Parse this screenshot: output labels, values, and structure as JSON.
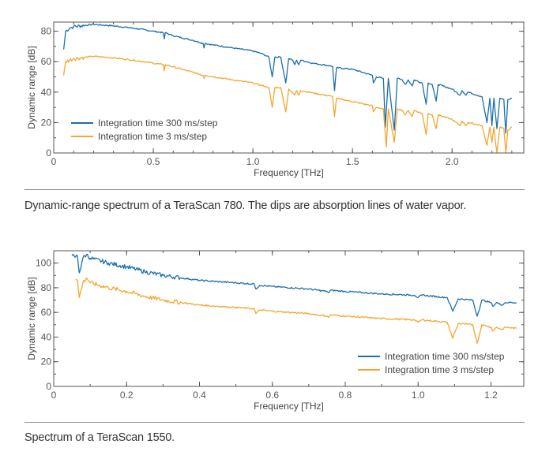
{
  "colors": {
    "series_300ms": "#1b6fae",
    "series_3ms": "#f4a630",
    "axis": "#555555"
  },
  "chart_data": [
    {
      "type": "line",
      "xlabel": "Frequency [THz]",
      "ylabel": "Dynamic range [dB]",
      "xlim": [
        0,
        2.36
      ],
      "ylim": [
        0,
        86
      ],
      "xticks": [
        0,
        0.5,
        1.0,
        1.5,
        2.0
      ],
      "xtick_labels": [
        "0",
        "0.5",
        "1.0",
        "1.5",
        "2.0"
      ],
      "yticks": [
        0,
        20,
        40,
        60,
        80
      ],
      "ytick_labels": [
        "0",
        "20",
        "40",
        "60",
        "80"
      ],
      "grid": false,
      "legend_position": "bottom-left",
      "caption": "Dynamic-range spectrum of a TeraScan 780. The dips are absorption lines of water vapor.",
      "series": [
        {
          "name": "Integration time 300 ms/step",
          "color": "#1b6fae",
          "points": [
            [
              0.05,
              68
            ],
            [
              0.06,
              80
            ],
            [
              0.08,
              82
            ],
            [
              0.1,
              83
            ],
            [
              0.2,
              84.5
            ],
            [
              0.3,
              83.5
            ],
            [
              0.4,
              82
            ],
            [
              0.5,
              80
            ],
            [
              0.55,
              79
            ],
            [
              0.555,
              75
            ],
            [
              0.56,
              79
            ],
            [
              0.6,
              77
            ],
            [
              0.7,
              74
            ],
            [
              0.75,
              72
            ],
            [
              0.755,
              69
            ],
            [
              0.76,
              72
            ],
            [
              0.8,
              71
            ],
            [
              0.9,
              69
            ],
            [
              1.0,
              67
            ],
            [
              1.05,
              65
            ],
            [
              1.08,
              63
            ],
            [
              1.097,
              50
            ],
            [
              1.11,
              63
            ],
            [
              1.14,
              63
            ],
            [
              1.165,
              46
            ],
            [
              1.18,
              62
            ],
            [
              1.2,
              61
            ],
            [
              1.21,
              58
            ],
            [
              1.22,
              61
            ],
            [
              1.23,
              58
            ],
            [
              1.24,
              61
            ],
            [
              1.3,
              59
            ],
            [
              1.4,
              57
            ],
            [
              1.41,
              41
            ],
            [
              1.42,
              56
            ],
            [
              1.5,
              55
            ],
            [
              1.55,
              53
            ],
            [
              1.6,
              51
            ],
            [
              1.605,
              46
            ],
            [
              1.62,
              50
            ],
            [
              1.655,
              49
            ],
            [
              1.665,
              17
            ],
            [
              1.68,
              49
            ],
            [
              1.71,
              15
            ],
            [
              1.725,
              49
            ],
            [
              1.75,
              48
            ],
            [
              1.765,
              45
            ],
            [
              1.78,
              48
            ],
            [
              1.8,
              44
            ],
            [
              1.81,
              48
            ],
            [
              1.85,
              46
            ],
            [
              1.87,
              32
            ],
            [
              1.88,
              46
            ],
            [
              1.9,
              45
            ],
            [
              1.92,
              34
            ],
            [
              1.93,
              45
            ],
            [
              2.0,
              42
            ],
            [
              2.04,
              38
            ],
            [
              2.05,
              41
            ],
            [
              2.07,
              38
            ],
            [
              2.08,
              40
            ],
            [
              2.15,
              37
            ],
            [
              2.175,
              20
            ],
            [
              2.19,
              36
            ],
            [
              2.2,
              18
            ],
            [
              2.21,
              36
            ],
            [
              2.225,
              16
            ],
            [
              2.24,
              36
            ],
            [
              2.26,
              35
            ],
            [
              2.27,
              13
            ],
            [
              2.28,
              35
            ],
            [
              2.3,
              36
            ]
          ]
        },
        {
          "name": "Integration time 3 ms/step",
          "color": "#f4a630",
          "points": [
            [
              0.05,
              51
            ],
            [
              0.06,
              60
            ],
            [
              0.1,
              62
            ],
            [
              0.2,
              63.5
            ],
            [
              0.3,
              62.5
            ],
            [
              0.4,
              61
            ],
            [
              0.5,
              59
            ],
            [
              0.55,
              58
            ],
            [
              0.555,
              54
            ],
            [
              0.56,
              58
            ],
            [
              0.7,
              53
            ],
            [
              0.75,
              51
            ],
            [
              0.755,
              49
            ],
            [
              0.76,
              51
            ],
            [
              0.9,
              48
            ],
            [
              1.0,
              46
            ],
            [
              1.08,
              43
            ],
            [
              1.097,
              30
            ],
            [
              1.11,
              43
            ],
            [
              1.14,
              43
            ],
            [
              1.165,
              27
            ],
            [
              1.18,
              42
            ],
            [
              1.21,
              38
            ],
            [
              1.22,
              41
            ],
            [
              1.23,
              38
            ],
            [
              1.24,
              41
            ],
            [
              1.4,
              37
            ],
            [
              1.41,
              24
            ],
            [
              1.42,
              36
            ],
            [
              1.6,
              31
            ],
            [
              1.605,
              27
            ],
            [
              1.62,
              30
            ],
            [
              1.655,
              29
            ],
            [
              1.665,
              12
            ],
            [
              1.67,
              4
            ],
            [
              1.68,
              29
            ],
            [
              1.71,
              7
            ],
            [
              1.725,
              29
            ],
            [
              1.75,
              28
            ],
            [
              1.765,
              25
            ],
            [
              1.78,
              28
            ],
            [
              1.8,
              24
            ],
            [
              1.81,
              28
            ],
            [
              1.85,
              26
            ],
            [
              1.87,
              12
            ],
            [
              1.88,
              26
            ],
            [
              1.9,
              25
            ],
            [
              1.92,
              16
            ],
            [
              1.93,
              25
            ],
            [
              2.0,
              22
            ],
            [
              2.04,
              18
            ],
            [
              2.05,
              21
            ],
            [
              2.07,
              18
            ],
            [
              2.08,
              20
            ],
            [
              2.15,
              18
            ],
            [
              2.175,
              5
            ],
            [
              2.19,
              17
            ],
            [
              2.2,
              7
            ],
            [
              2.21,
              17
            ],
            [
              2.225,
              0
            ],
            [
              2.24,
              17
            ],
            [
              2.26,
              16
            ],
            [
              2.27,
              0
            ],
            [
              2.28,
              15
            ],
            [
              2.3,
              17
            ]
          ]
        }
      ]
    },
    {
      "type": "line",
      "xlabel": "Frequency [THz]",
      "ylabel": "Dynamic range [dB]",
      "xlim": [
        0,
        1.29
      ],
      "ylim": [
        0,
        110
      ],
      "xticks": [
        0,
        0.2,
        0.4,
        0.6,
        0.8,
        1.0,
        1.2
      ],
      "xtick_labels": [
        "0",
        "0.2",
        "0.4",
        "0.6",
        "0.8",
        "1.0",
        "1.2"
      ],
      "yticks": [
        0,
        20,
        40,
        60,
        80,
        100
      ],
      "ytick_labels": [
        "0",
        "20",
        "40",
        "60",
        "80",
        "100"
      ],
      "grid": false,
      "legend_position": "bottom-right",
      "caption": "Spectrum of a TeraScan 1550.",
      "series": [
        {
          "name": "Integration time 300 ms/step",
          "color": "#1b6fae",
          "points": [
            [
              0.05,
              106
            ],
            [
              0.06,
              105
            ],
            [
              0.065,
              106
            ],
            [
              0.07,
              92
            ],
            [
              0.08,
              104
            ],
            [
              0.09,
              107
            ],
            [
              0.1,
              104
            ],
            [
              0.15,
              100
            ],
            [
              0.2,
              97
            ],
            [
              0.25,
              93
            ],
            [
              0.3,
              90
            ],
            [
              0.35,
              88
            ],
            [
              0.4,
              86
            ],
            [
              0.5,
              84
            ],
            [
              0.55,
              83
            ],
            [
              0.555,
              79
            ],
            [
              0.565,
              82
            ],
            [
              0.6,
              81
            ],
            [
              0.7,
              79
            ],
            [
              0.75,
              77
            ],
            [
              0.755,
              76
            ],
            [
              0.76,
              78
            ],
            [
              0.8,
              77
            ],
            [
              0.9,
              75
            ],
            [
              0.99,
              74
            ],
            [
              1.0,
              72
            ],
            [
              1.01,
              74
            ],
            [
              1.08,
              72
            ],
            [
              1.095,
              61
            ],
            [
              1.11,
              71
            ],
            [
              1.15,
              70
            ],
            [
              1.162,
              57
            ],
            [
              1.175,
              70
            ],
            [
              1.2,
              68
            ],
            [
              1.205,
              65
            ],
            [
              1.215,
              68
            ],
            [
              1.23,
              66
            ],
            [
              1.24,
              68
            ],
            [
              1.27,
              68
            ]
          ]
        },
        {
          "name": "Integration time 3 ms/step",
          "color": "#f4a630",
          "points": [
            [
              0.06,
              87
            ],
            [
              0.065,
              86
            ],
            [
              0.07,
              72
            ],
            [
              0.08,
              84
            ],
            [
              0.09,
              88
            ],
            [
              0.1,
              84
            ],
            [
              0.15,
              80
            ],
            [
              0.2,
              77
            ],
            [
              0.25,
              73
            ],
            [
              0.3,
              70
            ],
            [
              0.35,
              68
            ],
            [
              0.4,
              66
            ],
            [
              0.5,
              64
            ],
            [
              0.55,
              63
            ],
            [
              0.555,
              59
            ],
            [
              0.565,
              62
            ],
            [
              0.6,
              61
            ],
            [
              0.7,
              59
            ],
            [
              0.75,
              57
            ],
            [
              0.755,
              56
            ],
            [
              0.76,
              58
            ],
            [
              0.8,
              57
            ],
            [
              0.9,
              55
            ],
            [
              0.99,
              54
            ],
            [
              1.0,
              52
            ],
            [
              1.01,
              54
            ],
            [
              1.08,
              52
            ],
            [
              1.095,
              39
            ],
            [
              1.11,
              51
            ],
            [
              1.15,
              50
            ],
            [
              1.162,
              35
            ],
            [
              1.175,
              50
            ],
            [
              1.2,
              48
            ],
            [
              1.205,
              45
            ],
            [
              1.215,
              48
            ],
            [
              1.23,
              46
            ],
            [
              1.24,
              48
            ],
            [
              1.27,
              47
            ]
          ]
        }
      ]
    }
  ]
}
